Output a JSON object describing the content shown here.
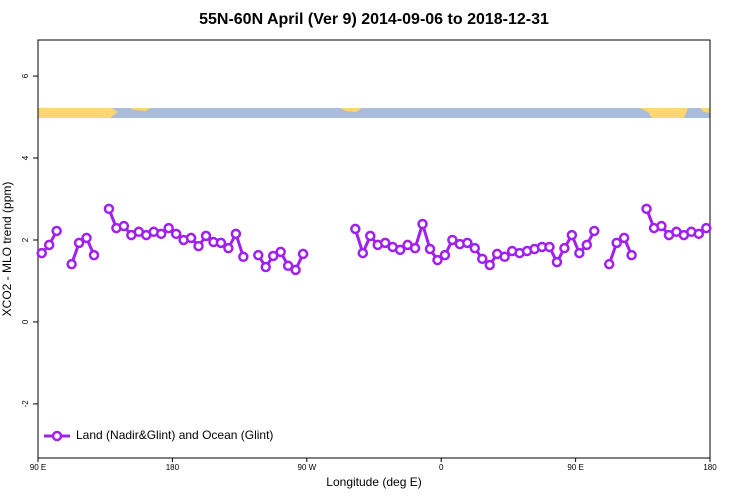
{
  "chart_data": {
    "type": "line",
    "title": "55N-60N April (Ver 9)   2014-09-06 to 2018-12-31",
    "x_label": "Longitude (deg E)",
    "y_label": "XCO2 - MLO trend (ppm)",
    "xlim": [
      90,
      540
    ],
    "ylim": [
      -3.32,
      6.88
    ],
    "xticks": [
      {
        "value": 90,
        "label": "90 E"
      },
      {
        "value": 180,
        "label": "180"
      },
      {
        "value": 270,
        "label": "90 W"
      },
      {
        "value": 360,
        "label": "0"
      },
      {
        "value": 450,
        "label": "90 E"
      },
      {
        "value": 540,
        "label": "180"
      }
    ],
    "yticks": [
      -2,
      0,
      2,
      4,
      6
    ],
    "legend": "bottom-left",
    "x": [
      92.5,
      97.5,
      102.5,
      107.5,
      112.5,
      117.5,
      122.5,
      127.5,
      132.5,
      137.5,
      142.5,
      147.5,
      152.5,
      157.5,
      162.5,
      167.5,
      172.5,
      177.5,
      182.5,
      187.5,
      192.5,
      197.5,
      202.5,
      207.5,
      212.5,
      217.5,
      222.5,
      227.5,
      232.5,
      237.5,
      242.5,
      247.5,
      252.5,
      257.5,
      262.5,
      267.5,
      272.5,
      277.5,
      282.5,
      287.5,
      292.5,
      297.5,
      302.5,
      307.5,
      312.5,
      317.5,
      322.5,
      327.5,
      332.5,
      337.5,
      342.5,
      347.5,
      352.5,
      357.5,
      362.5,
      367.5,
      372.5,
      377.5,
      382.5,
      387.5,
      392.5,
      397.5,
      402.5,
      407.5,
      412.5,
      417.5,
      422.5,
      427.5,
      432.5,
      437.5,
      442.5,
      447.5,
      452.5,
      457.5,
      462.5,
      467.5,
      472.5,
      477.5,
      482.5,
      487.5,
      492.5,
      497.5,
      502.5,
      507.5,
      512.5,
      517.5,
      522.5,
      527.5,
      532.5,
      537.5
    ],
    "series": [
      {
        "name": "Land (Nadir&Glint) and Ocean (Glint)",
        "color": "#a020f0",
        "values": [
          1.68,
          1.88,
          2.22,
          null,
          1.41,
          1.93,
          2.05,
          1.63,
          null,
          2.76,
          2.29,
          2.34,
          2.12,
          2.2,
          2.12,
          2.2,
          2.15,
          2.29,
          2.15,
          2.0,
          2.05,
          1.85,
          2.1,
          1.95,
          1.93,
          1.8,
          2.15,
          1.59,
          null,
          1.63,
          1.34,
          1.61,
          1.71,
          1.37,
          1.27,
          1.66,
          null,
          null,
          null,
          null,
          null,
          null,
          2.27,
          1.68,
          2.1,
          1.88,
          1.93,
          1.83,
          1.76,
          1.88,
          1.8,
          2.39,
          1.78,
          1.51,
          1.63,
          2.0,
          1.9,
          1.93,
          1.8,
          1.54,
          1.39,
          1.66,
          1.59,
          1.73,
          1.68,
          1.73,
          1.78,
          1.83,
          1.83,
          1.46,
          1.8,
          2.12,
          1.68,
          1.88,
          2.22,
          null,
          1.41,
          1.93,
          2.05,
          1.63,
          null,
          2.76,
          2.29,
          2.34,
          2.12,
          2.2,
          2.12,
          2.2,
          2.15,
          2.29
        ]
      }
    ]
  }
}
